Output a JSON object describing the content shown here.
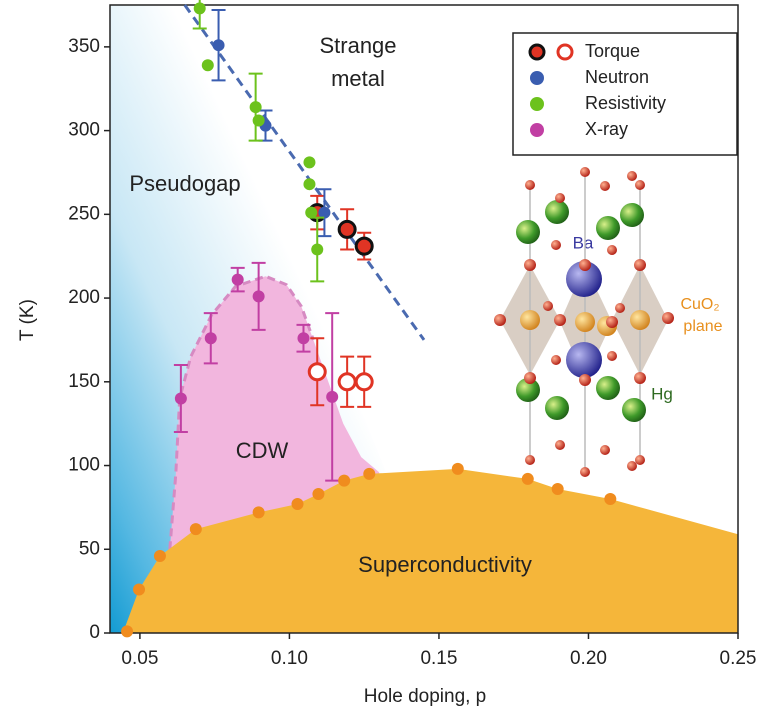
{
  "chart_data": {
    "type": "scatter",
    "x_label": "Hole doping, p",
    "y_label": "T (K)",
    "xlim": [
      0.04,
      0.25
    ],
    "ylim": [
      0,
      375
    ],
    "xticks": [
      0.05,
      {
        "value": 0.1,
        "label": "0.10"
      },
      0.15,
      {
        "value": 0.2,
        "label": "0.20"
      },
      0.25
    ],
    "yticks": [
      0,
      50,
      100,
      150,
      200,
      250,
      300,
      350
    ],
    "region_labels": [
      [
        "Strange",
        "metal"
      ],
      [
        "Pseudogap"
      ],
      [
        "CDW"
      ],
      [
        "Superconductivity"
      ]
    ],
    "structure_labels": [
      "Ba",
      "CuO₂",
      "plane",
      "Hg"
    ],
    "series": [
      {
        "name": "Torque",
        "color": "#e03424",
        "open": false,
        "x": [
          0.1093,
          0.1193,
          0.125
        ],
        "values": [
          251,
          241,
          231
        ],
        "errors": [
          10,
          12,
          8
        ]
      },
      {
        "color": "#e03424",
        "open": true,
        "x": [
          0.1093,
          0.1193,
          0.125
        ],
        "values": [
          156,
          150,
          150
        ],
        "errors": [
          20,
          15,
          15
        ]
      },
      {
        "name": "Neutron",
        "color": "#3a5db0",
        "x": [
          0.0763,
          0.092,
          0.1117
        ],
        "values": [
          351,
          303,
          251
        ],
        "errors": [
          21,
          9,
          14
        ]
      },
      {
        "name": "Resistivity",
        "color": "#6cc21c",
        "x": [
          0.07,
          0.0727,
          0.0887,
          0.0897,
          0.1067,
          0.1067,
          0.1073,
          0.1093
        ],
        "values": [
          373,
          339,
          314,
          306,
          281,
          268,
          251,
          229
        ],
        "errors": [
          12,
          null,
          20,
          null,
          null,
          null,
          null,
          19
        ]
      },
      {
        "name": "X-ray",
        "color": "#c13fa3",
        "x": [
          0.0637,
          0.0737,
          0.0827,
          0.0897,
          0.1047,
          0.1143
        ],
        "values": [
          140,
          176,
          211,
          201,
          176,
          141
        ],
        "errors": [
          20,
          15,
          7,
          20,
          8,
          50
        ]
      },
      {
        "color": "#f08c1e",
        "x": [
          0.0457,
          0.0497,
          0.0567,
          0.0687,
          0.0897,
          0.1027,
          0.1097,
          0.1183,
          0.1267,
          0.1563,
          0.1797,
          0.1897,
          0.2073
        ],
        "values": [
          1,
          26,
          46,
          62,
          72,
          77,
          83,
          91,
          95,
          98,
          92,
          86,
          80
        ]
      }
    ],
    "superconductivity_region": {
      "color": "#f5b63a",
      "x": [
        0.0443,
        0.0497,
        0.0567,
        0.0687,
        0.0897,
        0.1027,
        0.1097,
        0.1183,
        0.1267,
        0.1563,
        0.1797,
        0.1897,
        0.2073,
        0.25
      ],
      "y": [
        0,
        26,
        46,
        62,
        72,
        77,
        83,
        91,
        95,
        98,
        92,
        86,
        80,
        59
      ]
    },
    "cdw_region": {
      "color": "#f2b6de",
      "x": [
        0.06,
        0.062,
        0.0633,
        0.067,
        0.074,
        0.082,
        0.092,
        0.099,
        0.104,
        0.108,
        0.113,
        0.118,
        0.124,
        0.13
      ],
      "y": [
        50,
        95,
        140,
        165,
        190,
        207,
        213,
        208,
        195,
        175,
        150,
        125,
        105,
        96
      ]
    },
    "pseudogap_line": {
      "color": "#4a6ab0",
      "x": [
        0.065,
        0.145
      ],
      "y": [
        375,
        175
      ]
    }
  }
}
